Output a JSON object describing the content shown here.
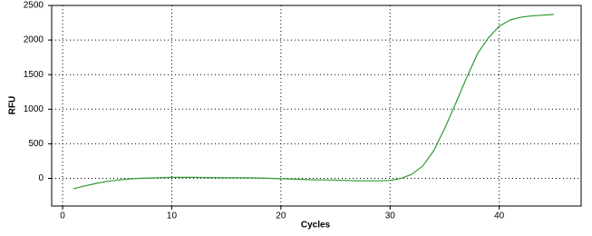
{
  "chart_data": {
    "type": "line",
    "xlabel": "Cycles",
    "ylabel": "RFU",
    "x": [
      1,
      2,
      3,
      4,
      5,
      6,
      7,
      8,
      9,
      10,
      11,
      12,
      13,
      14,
      15,
      16,
      17,
      18,
      19,
      20,
      21,
      22,
      23,
      24,
      25,
      26,
      27,
      28,
      29,
      30,
      31,
      32,
      33,
      34,
      35,
      36,
      37,
      38,
      39,
      40,
      41,
      42,
      43,
      44,
      45
    ],
    "series": [
      {
        "color": "#2e9a2e",
        "values": [
          -150,
          -110,
          -75,
          -45,
          -25,
          -10,
          0,
          5,
          10,
          15,
          15,
          15,
          12,
          10,
          8,
          8,
          8,
          5,
          0,
          -5,
          -10,
          -15,
          -20,
          -22,
          -25,
          -30,
          -35,
          -35,
          -35,
          -30,
          0,
          60,
          180,
          400,
          720,
          1080,
          1450,
          1800,
          2030,
          2200,
          2290,
          2330,
          2350,
          2360,
          2370
        ]
      }
    ],
    "xlim": [
      -1,
      47.5
    ],
    "ylim": [
      -400,
      2500
    ],
    "xticks": [
      0,
      10,
      20,
      30,
      40
    ],
    "yticks": [
      0,
      500,
      1000,
      1500,
      2000,
      2500
    ],
    "grid": true
  }
}
